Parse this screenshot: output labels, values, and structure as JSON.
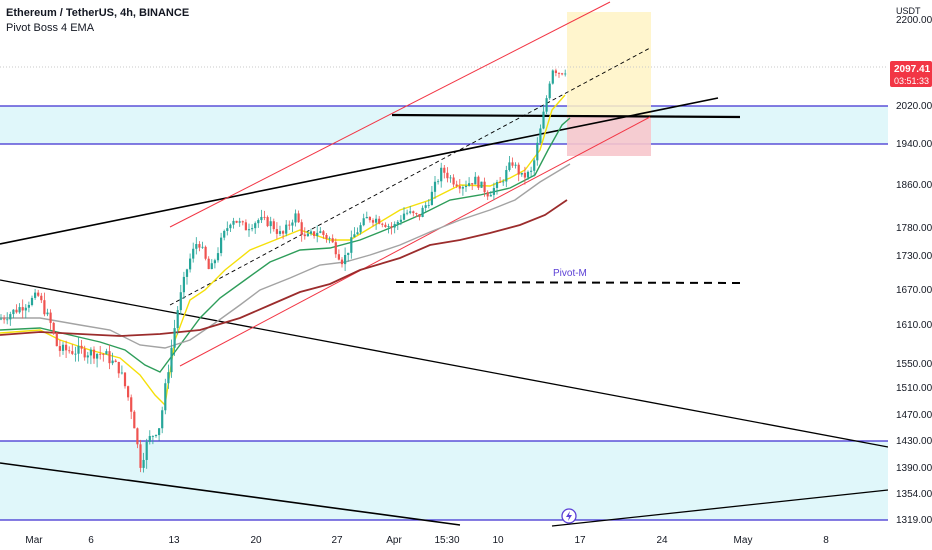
{
  "header": {
    "title": "Ethereum / TetherUS, 4h, BINANCE",
    "indicator": "Pivot Boss 4 EMA"
  },
  "chart_data": {
    "type": "candlestick",
    "currency": "USDT",
    "y_ticks": [
      2200,
      2020,
      1940,
      1860,
      1780,
      1730,
      1670,
      1610,
      1550,
      1510,
      1470,
      1430,
      1390,
      1354,
      1319
    ],
    "y_tick_labels": [
      "2200.00",
      "2020.00",
      "1940.00",
      "1860.00",
      "1780.00",
      "1730.00",
      "1670.00",
      "1610.00",
      "1550.00",
      "1510.00",
      "1470.00",
      "1430.00",
      "1390.00",
      "1354.00",
      "1319.00"
    ],
    "x_ticks": [
      "Mar",
      "6",
      "13",
      "20",
      "27",
      "Apr",
      "15:30",
      "10",
      "17",
      "24",
      "May",
      "8"
    ],
    "last_price": "2097.41",
    "countdown": "03:51:33",
    "annotation": "Pivot-M",
    "support_zones": [
      [
        1940,
        2020
      ],
      [
        1319,
        1430
      ]
    ],
    "candles_approx": [
      {
        "date": "Feb 27",
        "close": 1620
      },
      {
        "date": "Mar 1",
        "close": 1655
      },
      {
        "date": "Mar 3",
        "close": 1570
      },
      {
        "date": "Mar 6",
        "close": 1565
      },
      {
        "date": "Mar 9",
        "close": 1530
      },
      {
        "date": "Mar 10",
        "close": 1390
      },
      {
        "date": "Mar 11",
        "close": 1450
      },
      {
        "date": "Mar 13",
        "close": 1680
      },
      {
        "date": "Mar 14",
        "close": 1710
      },
      {
        "date": "Mar 16",
        "close": 1770
      },
      {
        "date": "Mar 18",
        "close": 1800
      },
      {
        "date": "Mar 20",
        "close": 1780
      },
      {
        "date": "Mar 22",
        "close": 1800
      },
      {
        "date": "Mar 24",
        "close": 1770
      },
      {
        "date": "Mar 27",
        "close": 1760
      },
      {
        "date": "Mar 28",
        "close": 1720
      },
      {
        "date": "Mar 30",
        "close": 1800
      },
      {
        "date": "Apr 1",
        "close": 1820
      },
      {
        "date": "Apr 3",
        "close": 1800
      },
      {
        "date": "Apr 5",
        "close": 1880
      },
      {
        "date": "Apr 7",
        "close": 1870
      },
      {
        "date": "Apr 9",
        "close": 1850
      },
      {
        "date": "Apr 11",
        "close": 1890
      },
      {
        "date": "Apr 12",
        "close": 1920
      },
      {
        "date": "Apr 13",
        "close": 2010
      },
      {
        "date": "Apr 14",
        "close": 2100
      },
      {
        "date": "Apr 15",
        "close": 2097
      }
    ],
    "colors": {
      "up": "#26a69a",
      "down": "#ef5350",
      "zone_fill": "#e0f7fa",
      "zone_line": "#3d2fd1",
      "channel": "#f23645",
      "long_target": "#fff3c4",
      "long_stop": "#f7c6cc",
      "ema_fast": "#f5e00a",
      "ema_mid": "#2e9d5a",
      "ema_slow": "#a3a3a3",
      "ema_long": "#9b2c2c",
      "price_label": "#f23645",
      "pivot_text": "#5b3fd6"
    }
  }
}
